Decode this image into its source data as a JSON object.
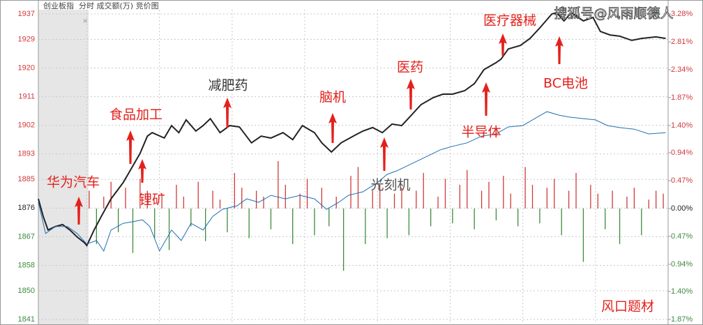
{
  "chart_data": {
    "type": "intraday",
    "title": "创业板指",
    "subtitle": "分时 成交额(万) 竞价图",
    "watermark": "搜狐号@风雨顺德人",
    "ylim": [
      1841,
      1937
    ],
    "yticks": [
      1937,
      1929,
      1920,
      1911,
      1902,
      1893,
      1885,
      1876,
      1867,
      1858,
      1850,
      1841
    ],
    "y2lim": [
      -1.87,
      3.28
    ],
    "y2ticks": [
      {
        "value": 3.28,
        "label": "3.28%"
      },
      {
        "value": 2.81,
        "label": "2.81%"
      },
      {
        "value": 2.34,
        "label": "2.34%"
      },
      {
        "value": 1.87,
        "label": "1.87%"
      },
      {
        "value": 1.4,
        "label": "1.40%"
      },
      {
        "value": 0.94,
        "label": "0.94%"
      },
      {
        "value": 0.47,
        "label": "0.47%"
      },
      {
        "value": 0,
        "label": "0.00%"
      },
      {
        "value": -0.47,
        "label": "0.47%"
      },
      {
        "value": -0.94,
        "label": "0.94%"
      },
      {
        "value": -1.4,
        "label": "1.40%"
      },
      {
        "value": -1.87,
        "label": "1.87%"
      }
    ],
    "xlim": [
      -20,
      240
    ],
    "xticks": [
      0,
      30,
      60,
      90,
      120,
      150,
      180,
      210
    ],
    "grid": true,
    "up_color": "#d0393b",
    "down_color": "#3d8b3d",
    "series": [
      {
        "kind": "line",
        "axis": "y",
        "color": "#222222",
        "x": [
          -20,
          -18,
          -16,
          -13,
          -10,
          -7,
          -4,
          -1,
          0,
          3,
          6,
          10,
          15,
          17,
          22,
          25,
          27,
          32,
          35,
          38,
          41,
          45,
          48,
          51,
          55,
          59,
          63,
          68,
          72,
          76,
          81,
          85,
          89,
          94,
          97,
          101,
          105,
          110,
          114,
          118,
          122,
          126,
          130,
          134,
          138,
          143,
          147,
          151,
          156,
          160,
          164,
          169,
          171,
          174,
          179,
          183,
          187,
          192,
          194,
          197,
          200,
          205,
          209,
          212,
          216,
          220,
          225,
          229,
          235,
          239
        ],
        "values": [
          1878.9,
          1873.4,
          1869.1,
          1870.2,
          1870.8,
          1869.1,
          1866.9,
          1865.1,
          1864.2,
          1869.1,
          1873.4,
          1878.9,
          1884.0,
          1886.6,
          1893.2,
          1898.6,
          1899.7,
          1898.0,
          1901.9,
          1899.7,
          1903.7,
          1900.2,
          1901.9,
          1904.1,
          1899.7,
          1901.9,
          1901.5,
          1896.5,
          1898.6,
          1898.0,
          1899.7,
          1897.5,
          1901.9,
          1899.7,
          1896.5,
          1893.6,
          1896.5,
          1898.6,
          1900.2,
          1901.3,
          1899.7,
          1902.4,
          1901.9,
          1905.2,
          1908.5,
          1910.7,
          1911.8,
          1911.8,
          1912.9,
          1915.1,
          1919.5,
          1921.7,
          1922.8,
          1926.0,
          1927.1,
          1929.3,
          1932.6,
          1937.0,
          1937.4,
          1934.8,
          1937.4,
          1934.8,
          1935.9,
          1931.5,
          1930.4,
          1930.0,
          1928.7,
          1929.3,
          1929.8,
          1929.3
        ]
      },
      {
        "kind": "line",
        "axis": "y",
        "color": "#1f6fb5",
        "x": [
          -20,
          -17,
          -13,
          -8,
          -4,
          0,
          4,
          7,
          10,
          15,
          19,
          23,
          26,
          30,
          35,
          39,
          43,
          48,
          52,
          56,
          62,
          66,
          71,
          76,
          82,
          88,
          94,
          99,
          104,
          108,
          114,
          120,
          124,
          128,
          134,
          140,
          146,
          151,
          157,
          163,
          169,
          174,
          180,
          186,
          190,
          195,
          199,
          205,
          210,
          215,
          220,
          226,
          232,
          239
        ],
        "values": [
          1877.8,
          1868.0,
          1870.2,
          1870.2,
          1868.0,
          1864.7,
          1865.8,
          1862.5,
          1869.1,
          1871.2,
          1871.7,
          1872.3,
          1870.2,
          1862.5,
          1869.1,
          1865.8,
          1871.2,
          1869.1,
          1873.4,
          1875.6,
          1876.7,
          1878.9,
          1877.8,
          1880.0,
          1878.9,
          1880.0,
          1878.9,
          1875.6,
          1877.8,
          1880.0,
          1881.1,
          1884.0,
          1886.6,
          1887.7,
          1889.9,
          1892.1,
          1894.3,
          1895.4,
          1896.5,
          1898.6,
          1899.3,
          1901.5,
          1901.9,
          1904.6,
          1906.3,
          1905.2,
          1904.6,
          1904.1,
          1903.7,
          1901.9,
          1901.3,
          1900.8,
          1899.3,
          1899.7
        ]
      },
      {
        "kind": "bar",
        "axis": "y2",
        "x": [
          1,
          4,
          7,
          10,
          13,
          16,
          19,
          22,
          25,
          28,
          31,
          34,
          37,
          40,
          43,
          46,
          49,
          52,
          55,
          58,
          61,
          64,
          67,
          70,
          73,
          76,
          79,
          82,
          85,
          88,
          91,
          94,
          97,
          100,
          103,
          106,
          109,
          112,
          115,
          118,
          121,
          124,
          127,
          130,
          133,
          136,
          139,
          142,
          145,
          148,
          151,
          154,
          157,
          160,
          163,
          166,
          169,
          172,
          175,
          178,
          181,
          184,
          187,
          190,
          193,
          196,
          199,
          202,
          205,
          208,
          211,
          214,
          217,
          220,
          223,
          226,
          229,
          232,
          235,
          238
        ],
        "values": [
          0.3,
          -0.6,
          0.2,
          0.45,
          -0.4,
          0.35,
          -0.75,
          0.5,
          0.3,
          -0.5,
          0.25,
          -0.7,
          0.4,
          0.2,
          -0.3,
          0.45,
          -0.55,
          0.3,
          0.15,
          -0.4,
          0.6,
          0.35,
          -0.5,
          0.3,
          0.2,
          -0.35,
          0.8,
          0.4,
          -0.6,
          0.25,
          0.5,
          -0.45,
          0.35,
          -0.3,
          0.2,
          -1.05,
          0.55,
          0.7,
          -0.6,
          0.3,
          0.4,
          -0.5,
          0.25,
          0.35,
          -0.45,
          0.3,
          0.6,
          -0.3,
          0.2,
          0.5,
          -0.25,
          0.4,
          0.65,
          -0.35,
          0.3,
          0.45,
          -0.2,
          0.55,
          0.25,
          -0.3,
          0.7,
          0.4,
          -0.25,
          0.35,
          0.5,
          -0.45,
          0.3,
          0.6,
          -0.9,
          0.4,
          0.25,
          -0.35,
          0.3,
          -0.6,
          0.2,
          0.35,
          -0.45,
          0.15,
          0.3,
          0.25
        ]
      }
    ],
    "annotations": [
      "华为汽车",
      "食品加工",
      "锂矿",
      "减肥药",
      "脑机",
      "光刻机",
      "医药",
      "半导体",
      "医疗器械",
      "BC电池",
      "风口题材"
    ]
  }
}
